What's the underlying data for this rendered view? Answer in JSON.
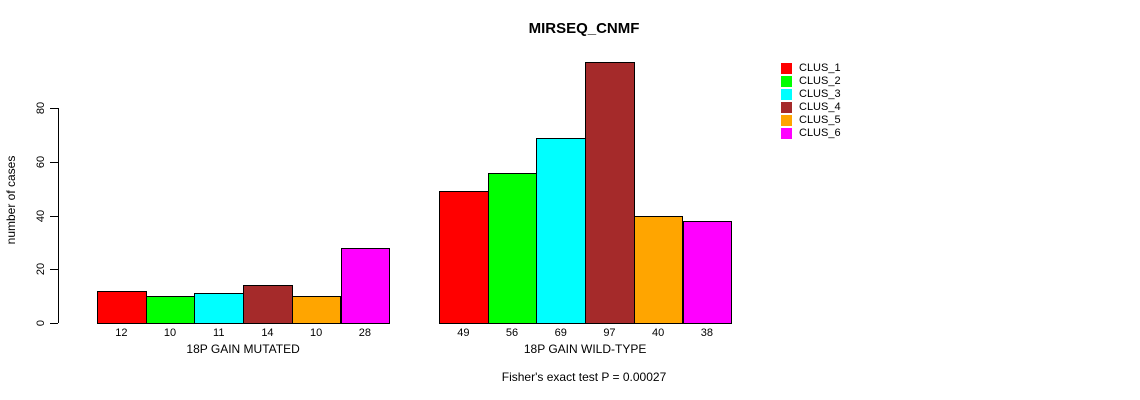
{
  "title": "MIRSEQ_CNMF",
  "chart_data": {
    "type": "bar",
    "title": "MIRSEQ_CNMF",
    "ylabel": "number of cases",
    "xlabel": "",
    "yticks": [
      0,
      20,
      40,
      60,
      80
    ],
    "ylim": [
      0,
      80
    ],
    "grid": false,
    "legend_position": "right-outside",
    "bar_border_color": "#000000",
    "clusters": [
      {
        "name": "CLUS_1",
        "color": "#FF0000"
      },
      {
        "name": "CLUS_2",
        "color": "#00FF00"
      },
      {
        "name": "CLUS_3",
        "color": "#00FFFF"
      },
      {
        "name": "CLUS_4",
        "color": "#A52A2A"
      },
      {
        "name": "CLUS_5",
        "color": "#FFA500"
      },
      {
        "name": "CLUS_6",
        "color": "#FF00FF"
      }
    ],
    "groups": [
      {
        "label": "18P GAIN MUTATED",
        "values": [
          12,
          10,
          11,
          14,
          10,
          28
        ]
      },
      {
        "label": "18P GAIN WILD-TYPE",
        "values": [
          49,
          56,
          69,
          97,
          40,
          38
        ]
      }
    ],
    "annotation": "Fisher's exact test P = 0.00027"
  }
}
